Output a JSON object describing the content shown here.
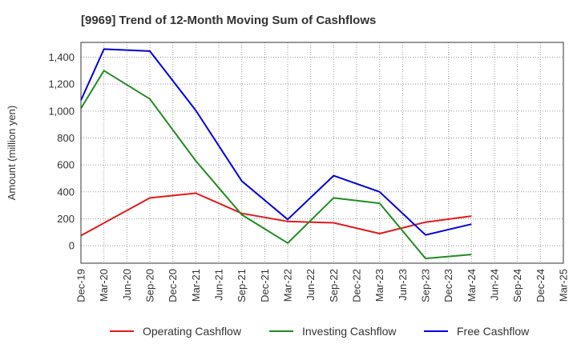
{
  "chart_data": {
    "type": "line",
    "title": "[9969]  Trend of 12-Month Moving Sum of Cashflows",
    "xlabel": "",
    "ylabel": "Amount (million yen)",
    "ylim": [
      -130,
      1510
    ],
    "yticks": [
      0,
      200,
      400,
      600,
      800,
      1000,
      1200,
      1400
    ],
    "ytick_labels": [
      "0",
      "200",
      "400",
      "600",
      "800",
      "1,000",
      "1,200",
      "1,400"
    ],
    "categories": [
      "Dec-19",
      "Mar-20",
      "Jun-20",
      "Sep-20",
      "Dec-20",
      "Mar-21",
      "Jun-21",
      "Sep-21",
      "Dec-21",
      "Mar-22",
      "Jun-22",
      "Sep-22",
      "Dec-22",
      "Mar-23",
      "Jun-23",
      "Sep-23",
      "Dec-23",
      "Mar-24",
      "Jun-24",
      "Sep-24",
      "Dec-24",
      "Mar-25"
    ],
    "grid": true,
    "legend_position": "bottom",
    "series": [
      {
        "name": "Operating Cashflow",
        "color": "#e31a1c",
        "values": [
          75,
          null,
          null,
          355,
          null,
          390,
          null,
          240,
          null,
          180,
          null,
          170,
          null,
          90,
          null,
          175,
          null,
          220,
          null,
          null,
          null,
          null
        ]
      },
      {
        "name": "Investing Cashflow",
        "color": "#228b22",
        "values": [
          1020,
          1300,
          null,
          1090,
          null,
          630,
          null,
          230,
          null,
          20,
          null,
          355,
          null,
          315,
          null,
          -95,
          null,
          -65,
          null,
          null,
          null,
          null
        ]
      },
      {
        "name": "Free Cashflow",
        "color": "#0000dd",
        "values": [
          1080,
          1460,
          null,
          1445,
          null,
          1005,
          null,
          480,
          null,
          195,
          null,
          520,
          null,
          400,
          null,
          80,
          null,
          160,
          null,
          null,
          null,
          null
        ]
      }
    ]
  }
}
